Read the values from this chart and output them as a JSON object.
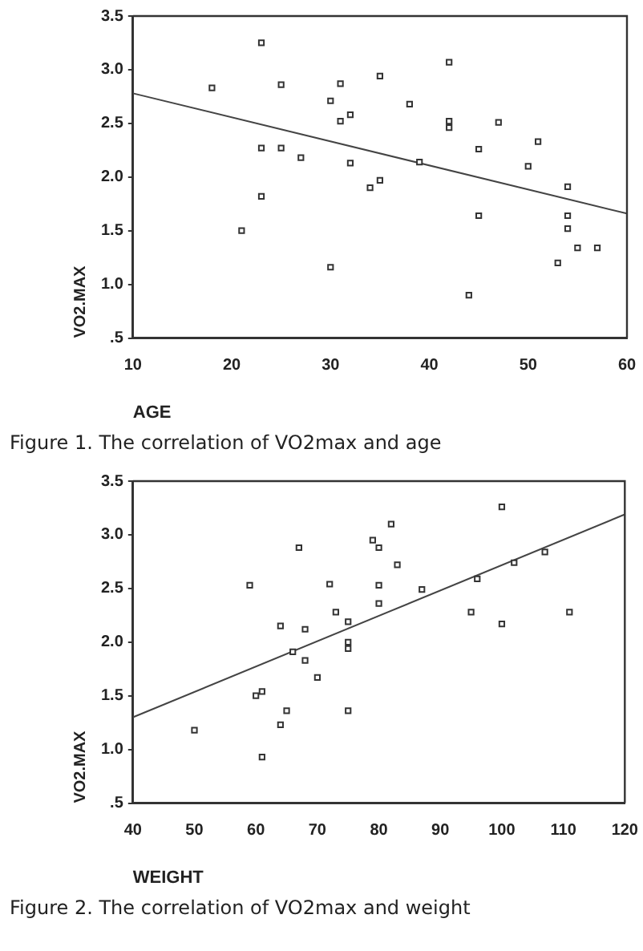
{
  "chart_data": [
    {
      "type": "scatter",
      "xlabel": "AGE",
      "ylabel": "VO2.MAX",
      "xlim": [
        10,
        60
      ],
      "ylim": [
        0.5,
        3.5
      ],
      "xticks": [
        10,
        20,
        30,
        40,
        50,
        60
      ],
      "yticks": [
        {
          "value": 0.5,
          "label": ".5"
        },
        {
          "value": 1.0,
          "label": "1.0"
        },
        {
          "value": 1.5,
          "label": "1.5"
        },
        {
          "value": 2.0,
          "label": "2.0"
        },
        {
          "value": 2.5,
          "label": "2.5"
        },
        {
          "value": 3.0,
          "label": "3.0"
        },
        {
          "value": 3.5,
          "label": "3.5"
        }
      ],
      "grid": false,
      "legend": false,
      "marker": "square",
      "series": [
        {
          "color": "#333333",
          "x": [
            18,
            23,
            25,
            23,
            25,
            27,
            23,
            21,
            30,
            31,
            31,
            32,
            32,
            30,
            34,
            35,
            35,
            42,
            38,
            42,
            42,
            47,
            45,
            51,
            50,
            39,
            54,
            45,
            54,
            54,
            55,
            57,
            53,
            44
          ],
          "values": [
            2.83,
            3.25,
            2.86,
            2.27,
            2.27,
            2.18,
            1.82,
            1.5,
            2.71,
            2.87,
            2.52,
            2.58,
            2.13,
            1.16,
            1.9,
            1.97,
            2.94,
            3.07,
            2.68,
            2.52,
            2.46,
            2.51,
            2.26,
            2.33,
            2.1,
            2.14,
            1.91,
            1.64,
            1.64,
            1.52,
            1.34,
            1.34,
            1.2,
            0.9
          ]
        },
        {
          "type": "line",
          "color": "#444444",
          "line_style": "solid",
          "marker": "none",
          "x": [
            10,
            60
          ],
          "values": [
            2.78,
            1.66
          ]
        }
      ],
      "annotations": [
        "Figure 1. The correlation of VO2max and age"
      ]
    },
    {
      "type": "scatter",
      "xlabel": "WEIGHT",
      "ylabel": "VO2.MAX",
      "xlim": [
        40,
        120
      ],
      "ylim": [
        0.5,
        3.5
      ],
      "xticks": [
        40,
        50,
        60,
        70,
        80,
        90,
        100,
        110,
        120
      ],
      "yticks": [
        {
          "value": 0.5,
          "label": ".5"
        },
        {
          "value": 1.0,
          "label": "1.0"
        },
        {
          "value": 1.5,
          "label": "1.5"
        },
        {
          "value": 2.0,
          "label": "2.0"
        },
        {
          "value": 2.5,
          "label": "2.5"
        },
        {
          "value": 3.0,
          "label": "3.0"
        },
        {
          "value": 3.5,
          "label": "3.5"
        }
      ],
      "grid": false,
      "legend": false,
      "marker": "square",
      "series": [
        {
          "color": "#333333",
          "x": [
            50,
            59,
            60,
            61,
            61,
            64,
            65,
            64,
            67,
            66,
            68,
            68,
            70,
            72,
            73,
            75,
            75,
            75,
            75,
            79,
            80,
            80,
            80,
            82,
            83,
            87,
            96,
            95,
            100,
            100,
            102,
            107,
            111
          ],
          "values": [
            1.18,
            2.53,
            1.5,
            1.54,
            0.93,
            2.15,
            1.36,
            1.23,
            2.88,
            1.91,
            2.12,
            1.83,
            1.67,
            2.54,
            2.28,
            2.19,
            2.0,
            1.94,
            1.36,
            2.95,
            2.88,
            2.53,
            2.36,
            3.1,
            2.72,
            2.49,
            2.59,
            2.28,
            3.26,
            2.17,
            2.74,
            2.84,
            2.28
          ]
        },
        {
          "type": "line",
          "color": "#444444",
          "line_style": "solid",
          "marker": "none",
          "x": [
            40,
            120
          ],
          "values": [
            1.3,
            3.19
          ]
        }
      ],
      "annotations": [
        "Figure 2. The correlation of VO2max and weight"
      ]
    }
  ]
}
